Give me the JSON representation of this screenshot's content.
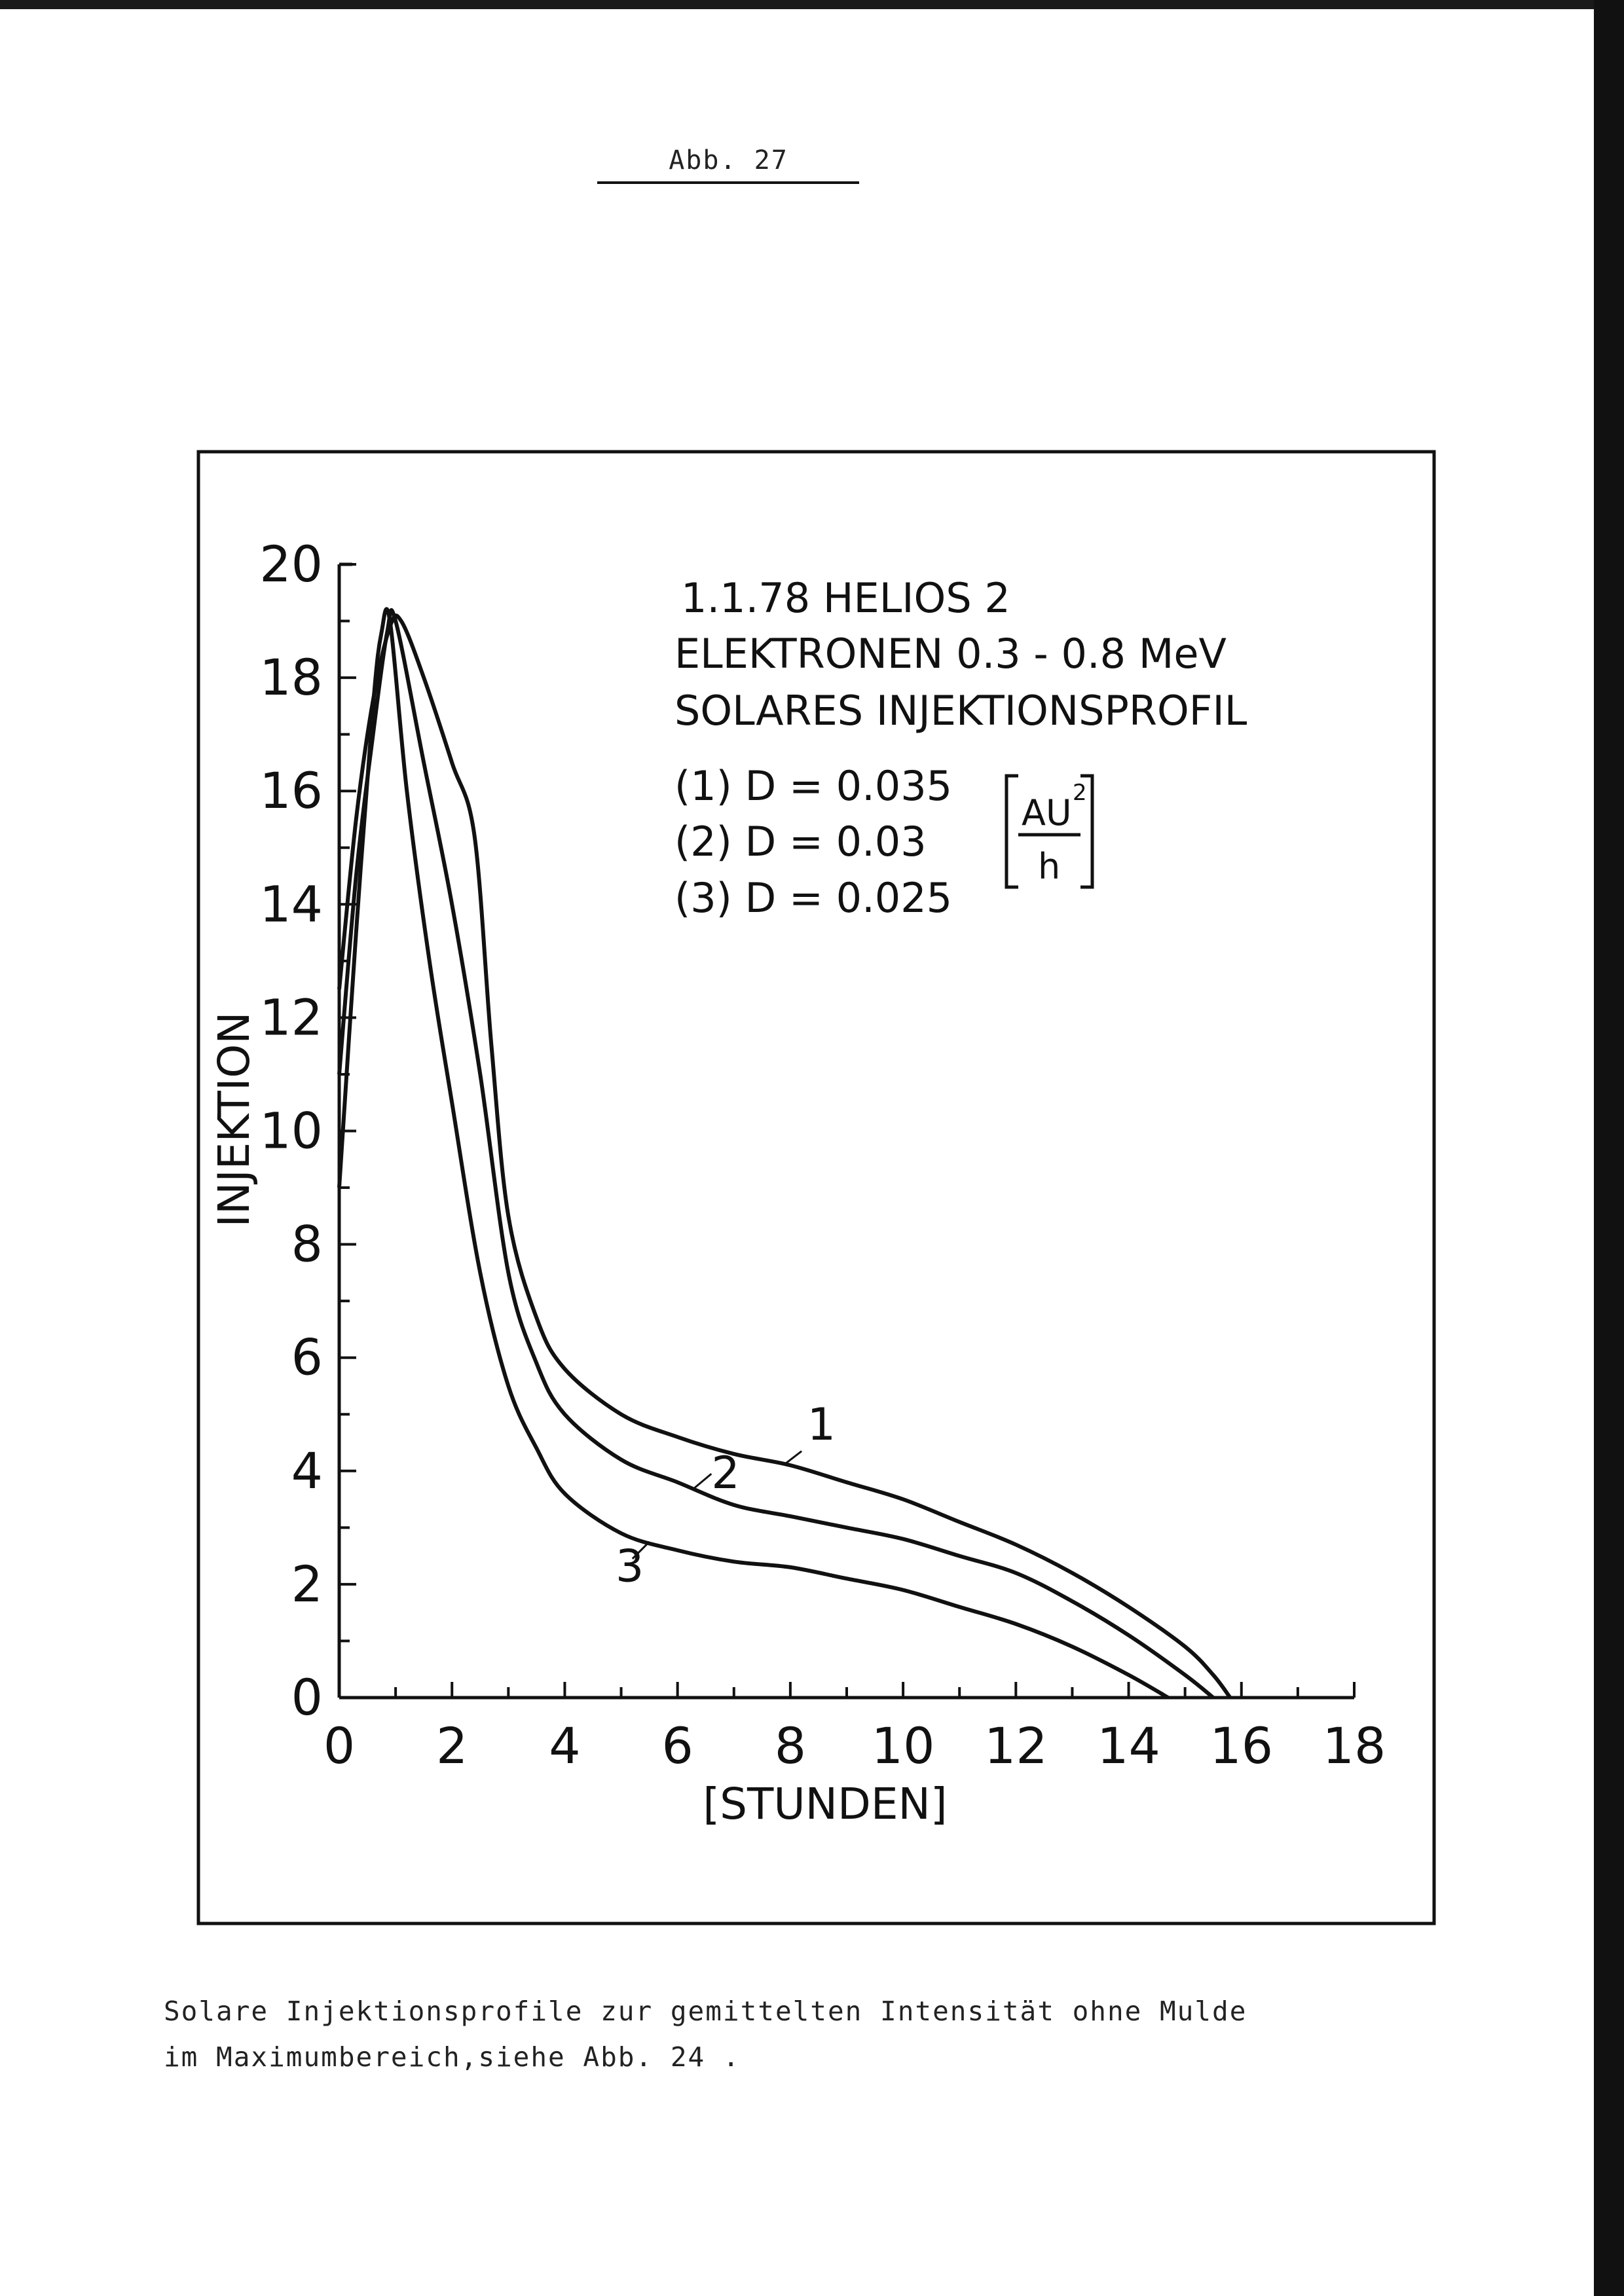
{
  "figure_number": "Abb. 27",
  "chart_data": {
    "type": "line",
    "title_lines": [
      "1.1.78 HELIOS 2",
      "ELEKTRONEN 0.3 - 0.8 MeV",
      "SOLARES INJEKTIONSPROFIL"
    ],
    "parameter_lines": [
      "(1) D = 0.035",
      "(2) D = 0.03",
      "(3) D = 0.025"
    ],
    "unit": {
      "numerator": "AU",
      "exponent": "2",
      "denominator": "h"
    },
    "xlabel": "[STUNDEN]",
    "ylabel": "INJEKTION",
    "xlim": [
      0,
      18
    ],
    "ylim": [
      0,
      20
    ],
    "xticks": [
      0,
      2,
      4,
      6,
      8,
      10,
      12,
      14,
      16,
      18
    ],
    "yticks": [
      0,
      2,
      4,
      6,
      8,
      10,
      12,
      14,
      16,
      18,
      20
    ],
    "grid": false,
    "series": [
      {
        "name": "1",
        "x": [
          0,
          0.3,
          0.6,
          0.9,
          1.1,
          1.5,
          2.0,
          2.4,
          2.7,
          3.0,
          3.5,
          4.0,
          5.0,
          6.0,
          7.0,
          8.0,
          9.0,
          10.0,
          11.0,
          12.0,
          13.0,
          14.0,
          15.0,
          15.5,
          15.8
        ],
        "y": [
          12.5,
          15.5,
          17.6,
          18.9,
          19.0,
          18.0,
          16.5,
          15.2,
          11.5,
          8.5,
          6.7,
          5.8,
          5.0,
          4.6,
          4.3,
          4.1,
          3.8,
          3.5,
          3.1,
          2.7,
          2.2,
          1.6,
          0.9,
          0.4,
          0.0
        ]
      },
      {
        "name": "2",
        "x": [
          0,
          0.3,
          0.6,
          0.85,
          1.0,
          1.5,
          2.0,
          2.5,
          3.0,
          3.5,
          4.0,
          5.0,
          6.0,
          7.0,
          8.0,
          9.0,
          10.0,
          11.0,
          12.0,
          13.0,
          14.0,
          15.0,
          15.5
        ],
        "y": [
          11.0,
          14.5,
          17.0,
          18.8,
          19.0,
          16.5,
          14.0,
          11.0,
          7.5,
          5.9,
          5.0,
          4.2,
          3.8,
          3.4,
          3.2,
          3.0,
          2.8,
          2.5,
          2.2,
          1.7,
          1.1,
          0.4,
          0.0
        ]
      },
      {
        "name": "3",
        "x": [
          0,
          0.3,
          0.6,
          0.75,
          0.9,
          1.2,
          1.6,
          2.0,
          2.5,
          3.0,
          3.5,
          4.0,
          5.0,
          6.0,
          7.0,
          8.0,
          9.0,
          10.0,
          11.0,
          12.0,
          13.0,
          14.0,
          14.7
        ],
        "y": [
          9.0,
          13.5,
          17.5,
          18.8,
          19.0,
          16.0,
          13.0,
          10.5,
          7.5,
          5.5,
          4.4,
          3.6,
          2.9,
          2.6,
          2.4,
          2.3,
          2.1,
          1.9,
          1.6,
          1.3,
          0.9,
          0.4,
          0.0
        ]
      }
    ]
  },
  "caption": {
    "line1": "Solare Injektionsprofile zur gemittelten Intensität ohne Mulde",
    "line2": "im Maximumbereich,siehe Abb. 24 ."
  }
}
